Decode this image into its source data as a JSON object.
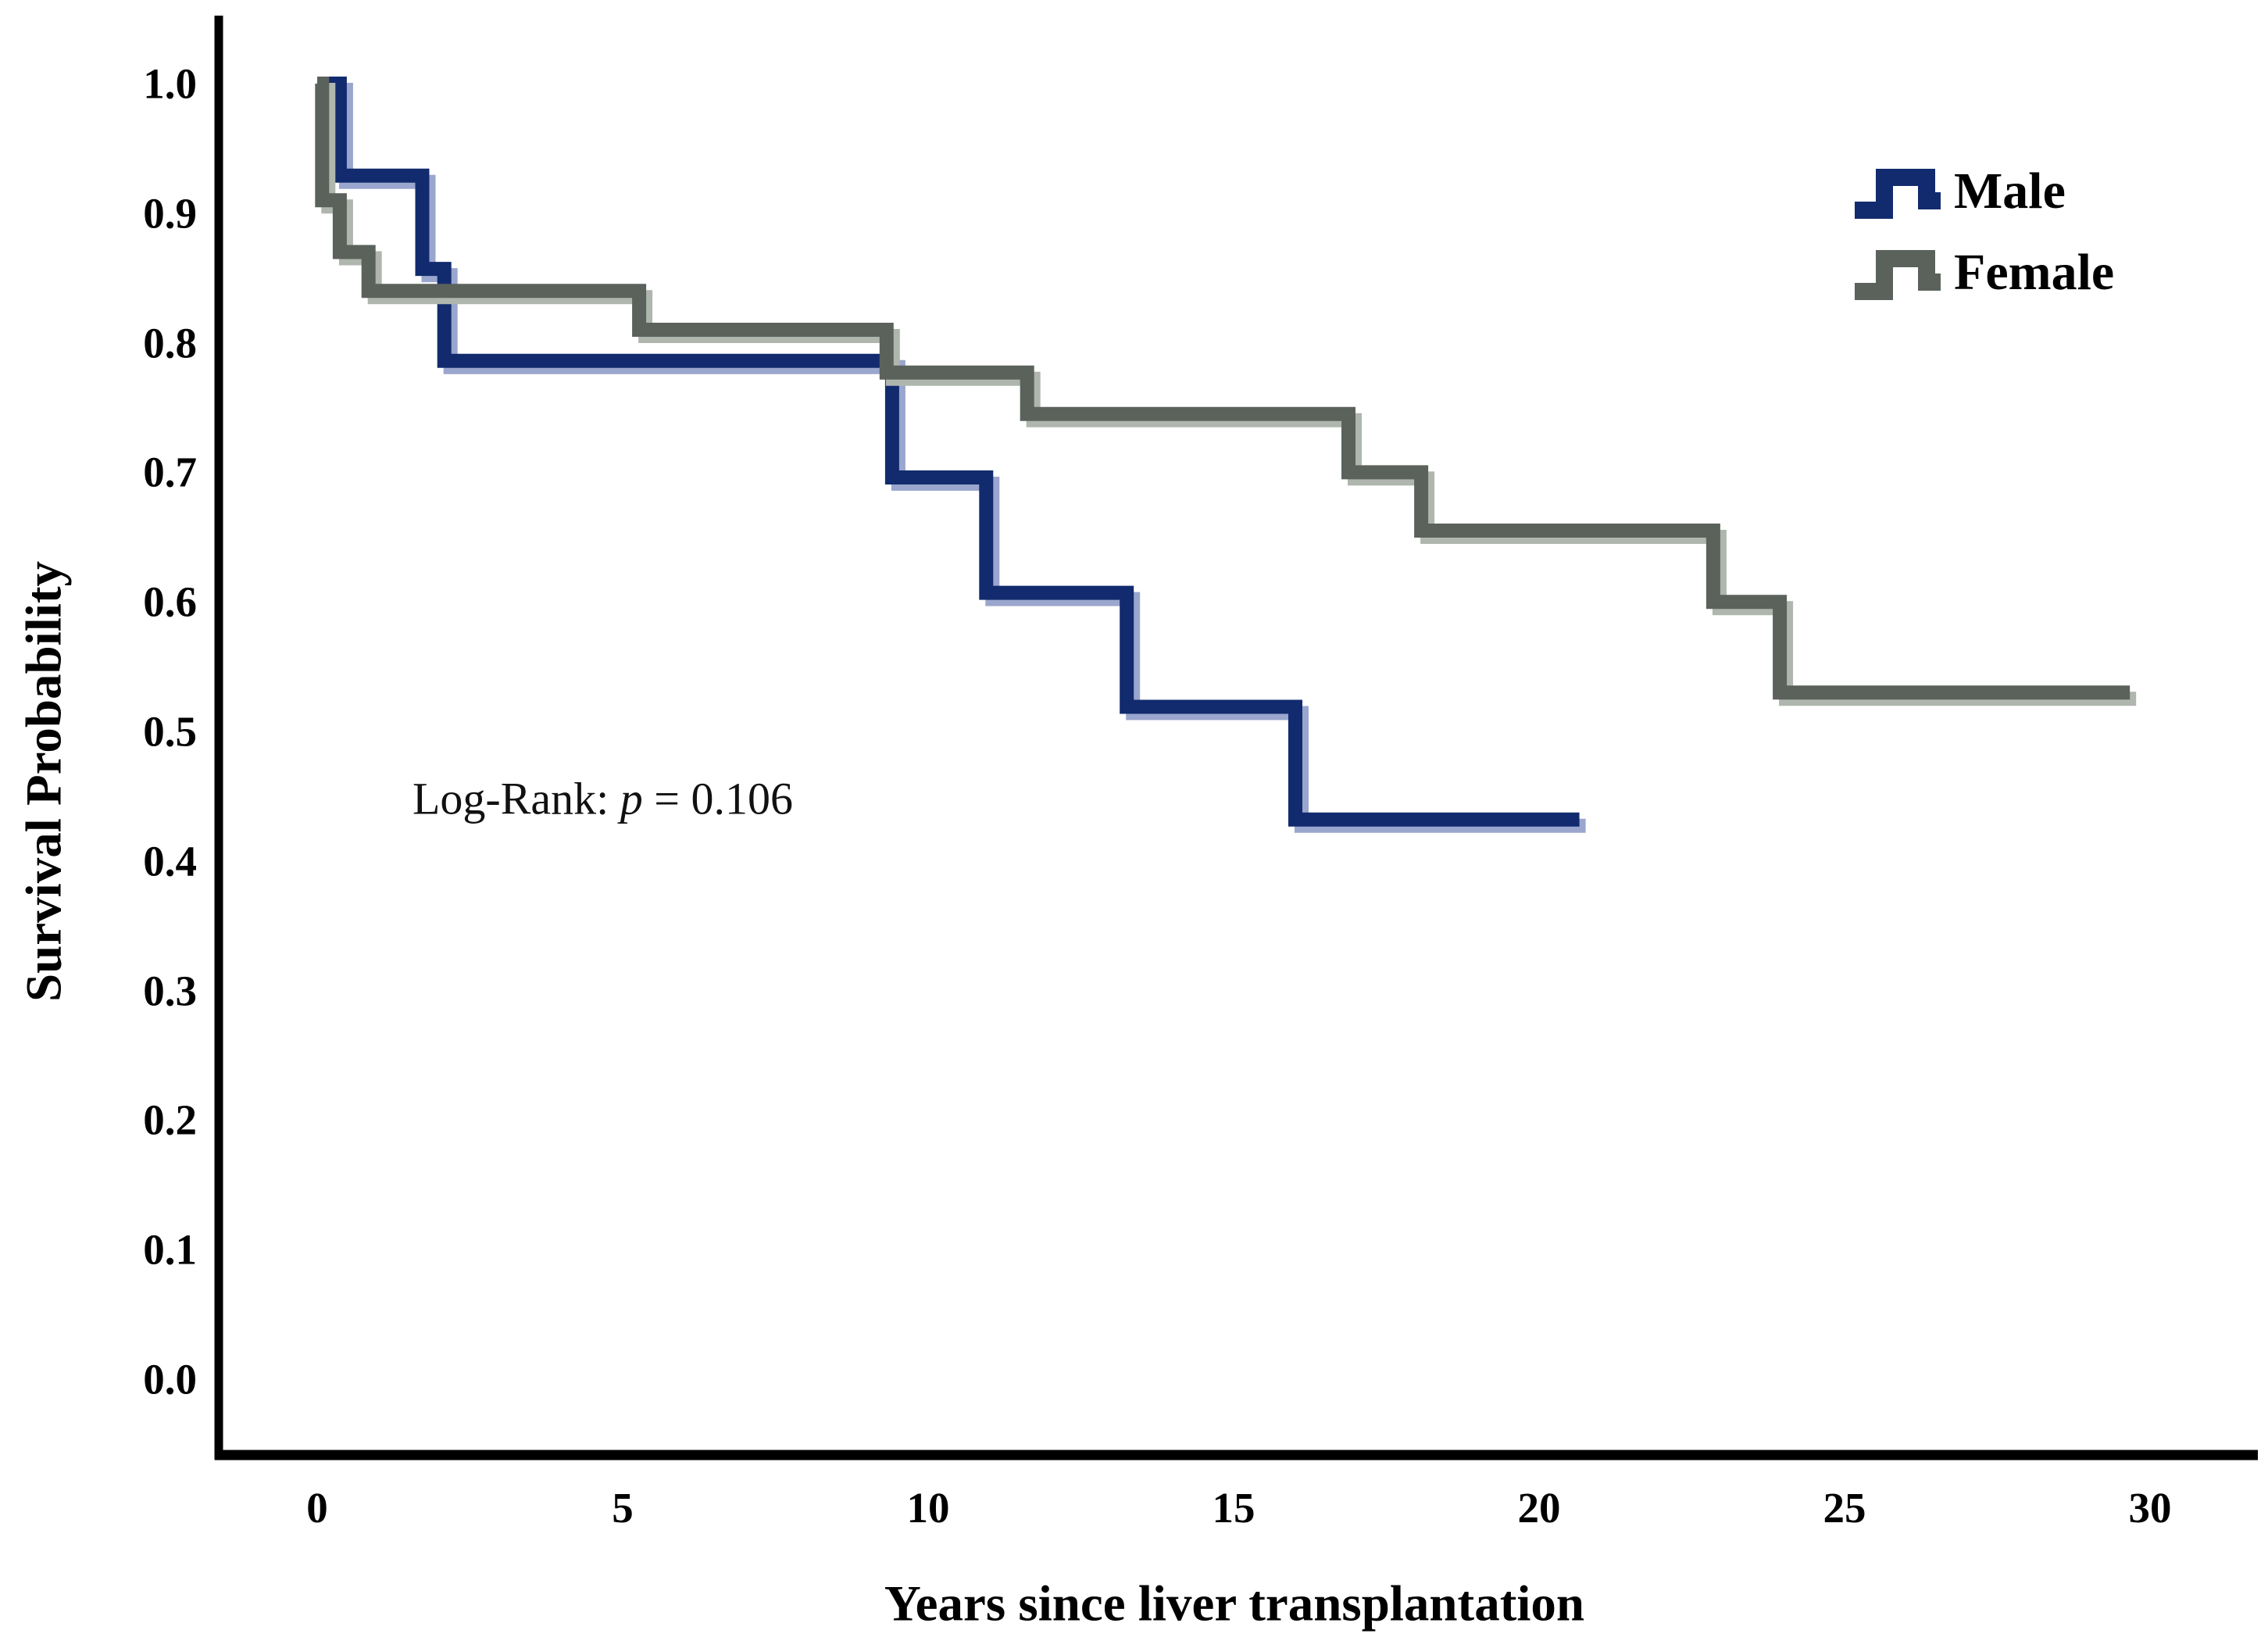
{
  "chart_data": {
    "type": "line",
    "subtype": "kaplan-meier-step-curves",
    "title": "",
    "xlabel": "Years since liver transplantation",
    "ylabel": "Survival Probability",
    "xlim": [
      0,
      30
    ],
    "ylim": [
      0.0,
      1.0
    ],
    "grid": false,
    "legend_position": "upper-right",
    "xticks": [
      "0",
      "5",
      "10",
      "15",
      "20",
      "25",
      "30"
    ],
    "yticks": [
      "1.0",
      "0.9",
      "0.8",
      "0.7",
      "0.6",
      "0.5",
      "0.4",
      "0.3",
      "0.2",
      "0.1",
      "0.0"
    ],
    "series": [
      {
        "name": "Male",
        "color": "#122b6e",
        "shadow": "#9aa6ce",
        "steps": [
          [
            0,
            1.0
          ],
          [
            0.37,
            1.0
          ],
          [
            0.37,
            0.929
          ],
          [
            1.72,
            0.929
          ],
          [
            1.72,
            0.857
          ],
          [
            2.08,
            0.857
          ],
          [
            2.08,
            0.786
          ],
          [
            9.41,
            0.786
          ],
          [
            9.41,
            0.696
          ],
          [
            10.95,
            0.696
          ],
          [
            10.95,
            0.607
          ],
          [
            13.25,
            0.607
          ],
          [
            13.25,
            0.519
          ],
          [
            16.01,
            0.519
          ],
          [
            16.01,
            0.432
          ],
          [
            20.66,
            0.432
          ]
        ]
      },
      {
        "name": "Female",
        "color": "#5a625b",
        "shadow": "#aeb6ae",
        "steps": [
          [
            0,
            1.0
          ],
          [
            0.08,
            1.0
          ],
          [
            0.08,
            0.91
          ],
          [
            0.37,
            0.91
          ],
          [
            0.37,
            0.87
          ],
          [
            0.84,
            0.87
          ],
          [
            0.84,
            0.84
          ],
          [
            5.27,
            0.84
          ],
          [
            5.27,
            0.81
          ],
          [
            9.32,
            0.81
          ],
          [
            9.32,
            0.777
          ],
          [
            11.62,
            0.777
          ],
          [
            11.62,
            0.745
          ],
          [
            16.88,
            0.745
          ],
          [
            16.88,
            0.7
          ],
          [
            18.07,
            0.7
          ],
          [
            18.07,
            0.655
          ],
          [
            22.85,
            0.655
          ],
          [
            22.85,
            0.6
          ],
          [
            23.94,
            0.6
          ],
          [
            23.94,
            0.53
          ],
          [
            29.67,
            0.53
          ]
        ]
      }
    ],
    "annotation": {
      "prefix": "Log-Rank:",
      "p_symbol": "p",
      "value": "= 0.106"
    }
  },
  "legend": {
    "items": [
      {
        "label": "Male",
        "color": "#122b6e",
        "shadow": "#9aa6ce"
      },
      {
        "label": "Female",
        "color": "#5a625b",
        "shadow": "#aeb6ae"
      }
    ]
  },
  "axes": {
    "color": "#000000"
  }
}
